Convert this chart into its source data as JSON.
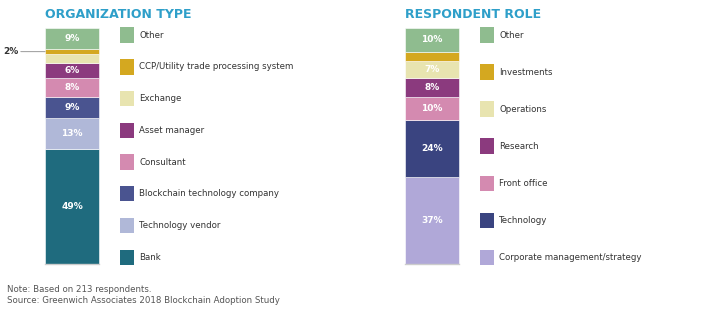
{
  "chart1_title": "ORGANIZATION TYPE",
  "chart2_title": "RESPONDENT ROLE",
  "chart1_segments": [
    {
      "label": "Other",
      "value": 9,
      "color": "#8fbc8f"
    },
    {
      "label": "CCP/Utility trade processing system",
      "value": 2,
      "color": "#d4a820"
    },
    {
      "label": "Exchange",
      "value": 4,
      "color": "#e8e4b0"
    },
    {
      "label": "Asset manager",
      "value": 6,
      "color": "#8b3a7e"
    },
    {
      "label": "Consultant",
      "value": 8,
      "color": "#d48ab0"
    },
    {
      "label": "Blockchain technology company",
      "value": 9,
      "color": "#4a5490"
    },
    {
      "label": "Technology vendor",
      "value": 13,
      "color": "#b0b8d8"
    },
    {
      "label": "Bank",
      "value": 49,
      "color": "#1f6b7e"
    }
  ],
  "chart2_segments": [
    {
      "label": "Other",
      "value": 10,
      "color": "#8fbc8f"
    },
    {
      "label": "Investments",
      "value": 4,
      "color": "#d4a820"
    },
    {
      "label": "Operations",
      "value": 7,
      "color": "#e8e4b0"
    },
    {
      "label": "Research",
      "value": 8,
      "color": "#8b3a7e"
    },
    {
      "label": "Front office",
      "value": 10,
      "color": "#d48ab0"
    },
    {
      "label": "Technology",
      "value": 24,
      "color": "#3a4480"
    },
    {
      "label": "Corporate management/strategy",
      "value": 37,
      "color": "#b0a8d8"
    }
  ],
  "note": "Note: Based on 213 respondents.\nSource: Greenwich Associates 2018 Blockchain Adoption Study",
  "title_color": "#2e9fc9",
  "bg_color": "#ffffff"
}
